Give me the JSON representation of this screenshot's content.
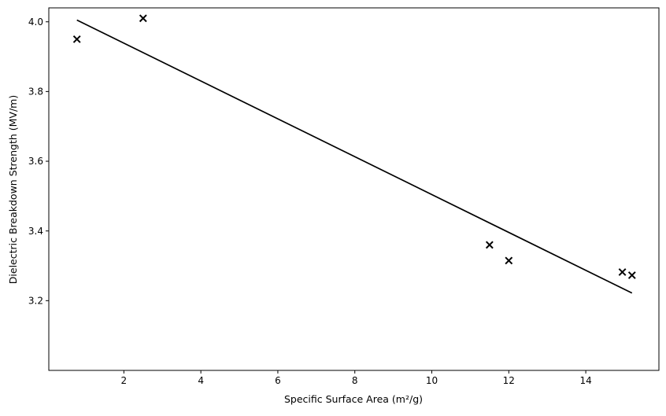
{
  "chart_data": {
    "type": "scatter",
    "title": "",
    "xlabel": "Specific Surface Area (m²/g)",
    "ylabel": "Dielectric Breakdown Strength (MV/m)",
    "xlim": [
      0.05,
      15.9
    ],
    "ylim": [
      3.0,
      4.04
    ],
    "x_ticks": [
      2,
      4,
      6,
      8,
      10,
      12,
      14
    ],
    "y_ticks": [
      3.2,
      3.4,
      3.6,
      3.8,
      4.0
    ],
    "x_tick_labels": [
      "2",
      "4",
      "6",
      "8",
      "10",
      "12",
      "14"
    ],
    "y_tick_labels": [
      "3.2",
      "3.4",
      "3.6",
      "3.8",
      "4.0"
    ],
    "grid": false,
    "series": [
      {
        "type": "scatter",
        "marker": "x",
        "color": "#000000",
        "x": [
          0.78,
          2.5,
          11.5,
          12.0,
          14.95,
          15.2
        ],
        "y": [
          3.95,
          4.01,
          3.36,
          3.315,
          3.282,
          3.273
        ]
      },
      {
        "type": "line",
        "color": "#000000",
        "x": [
          0.78,
          15.2
        ],
        "y": [
          4.005,
          3.222
        ]
      }
    ]
  }
}
